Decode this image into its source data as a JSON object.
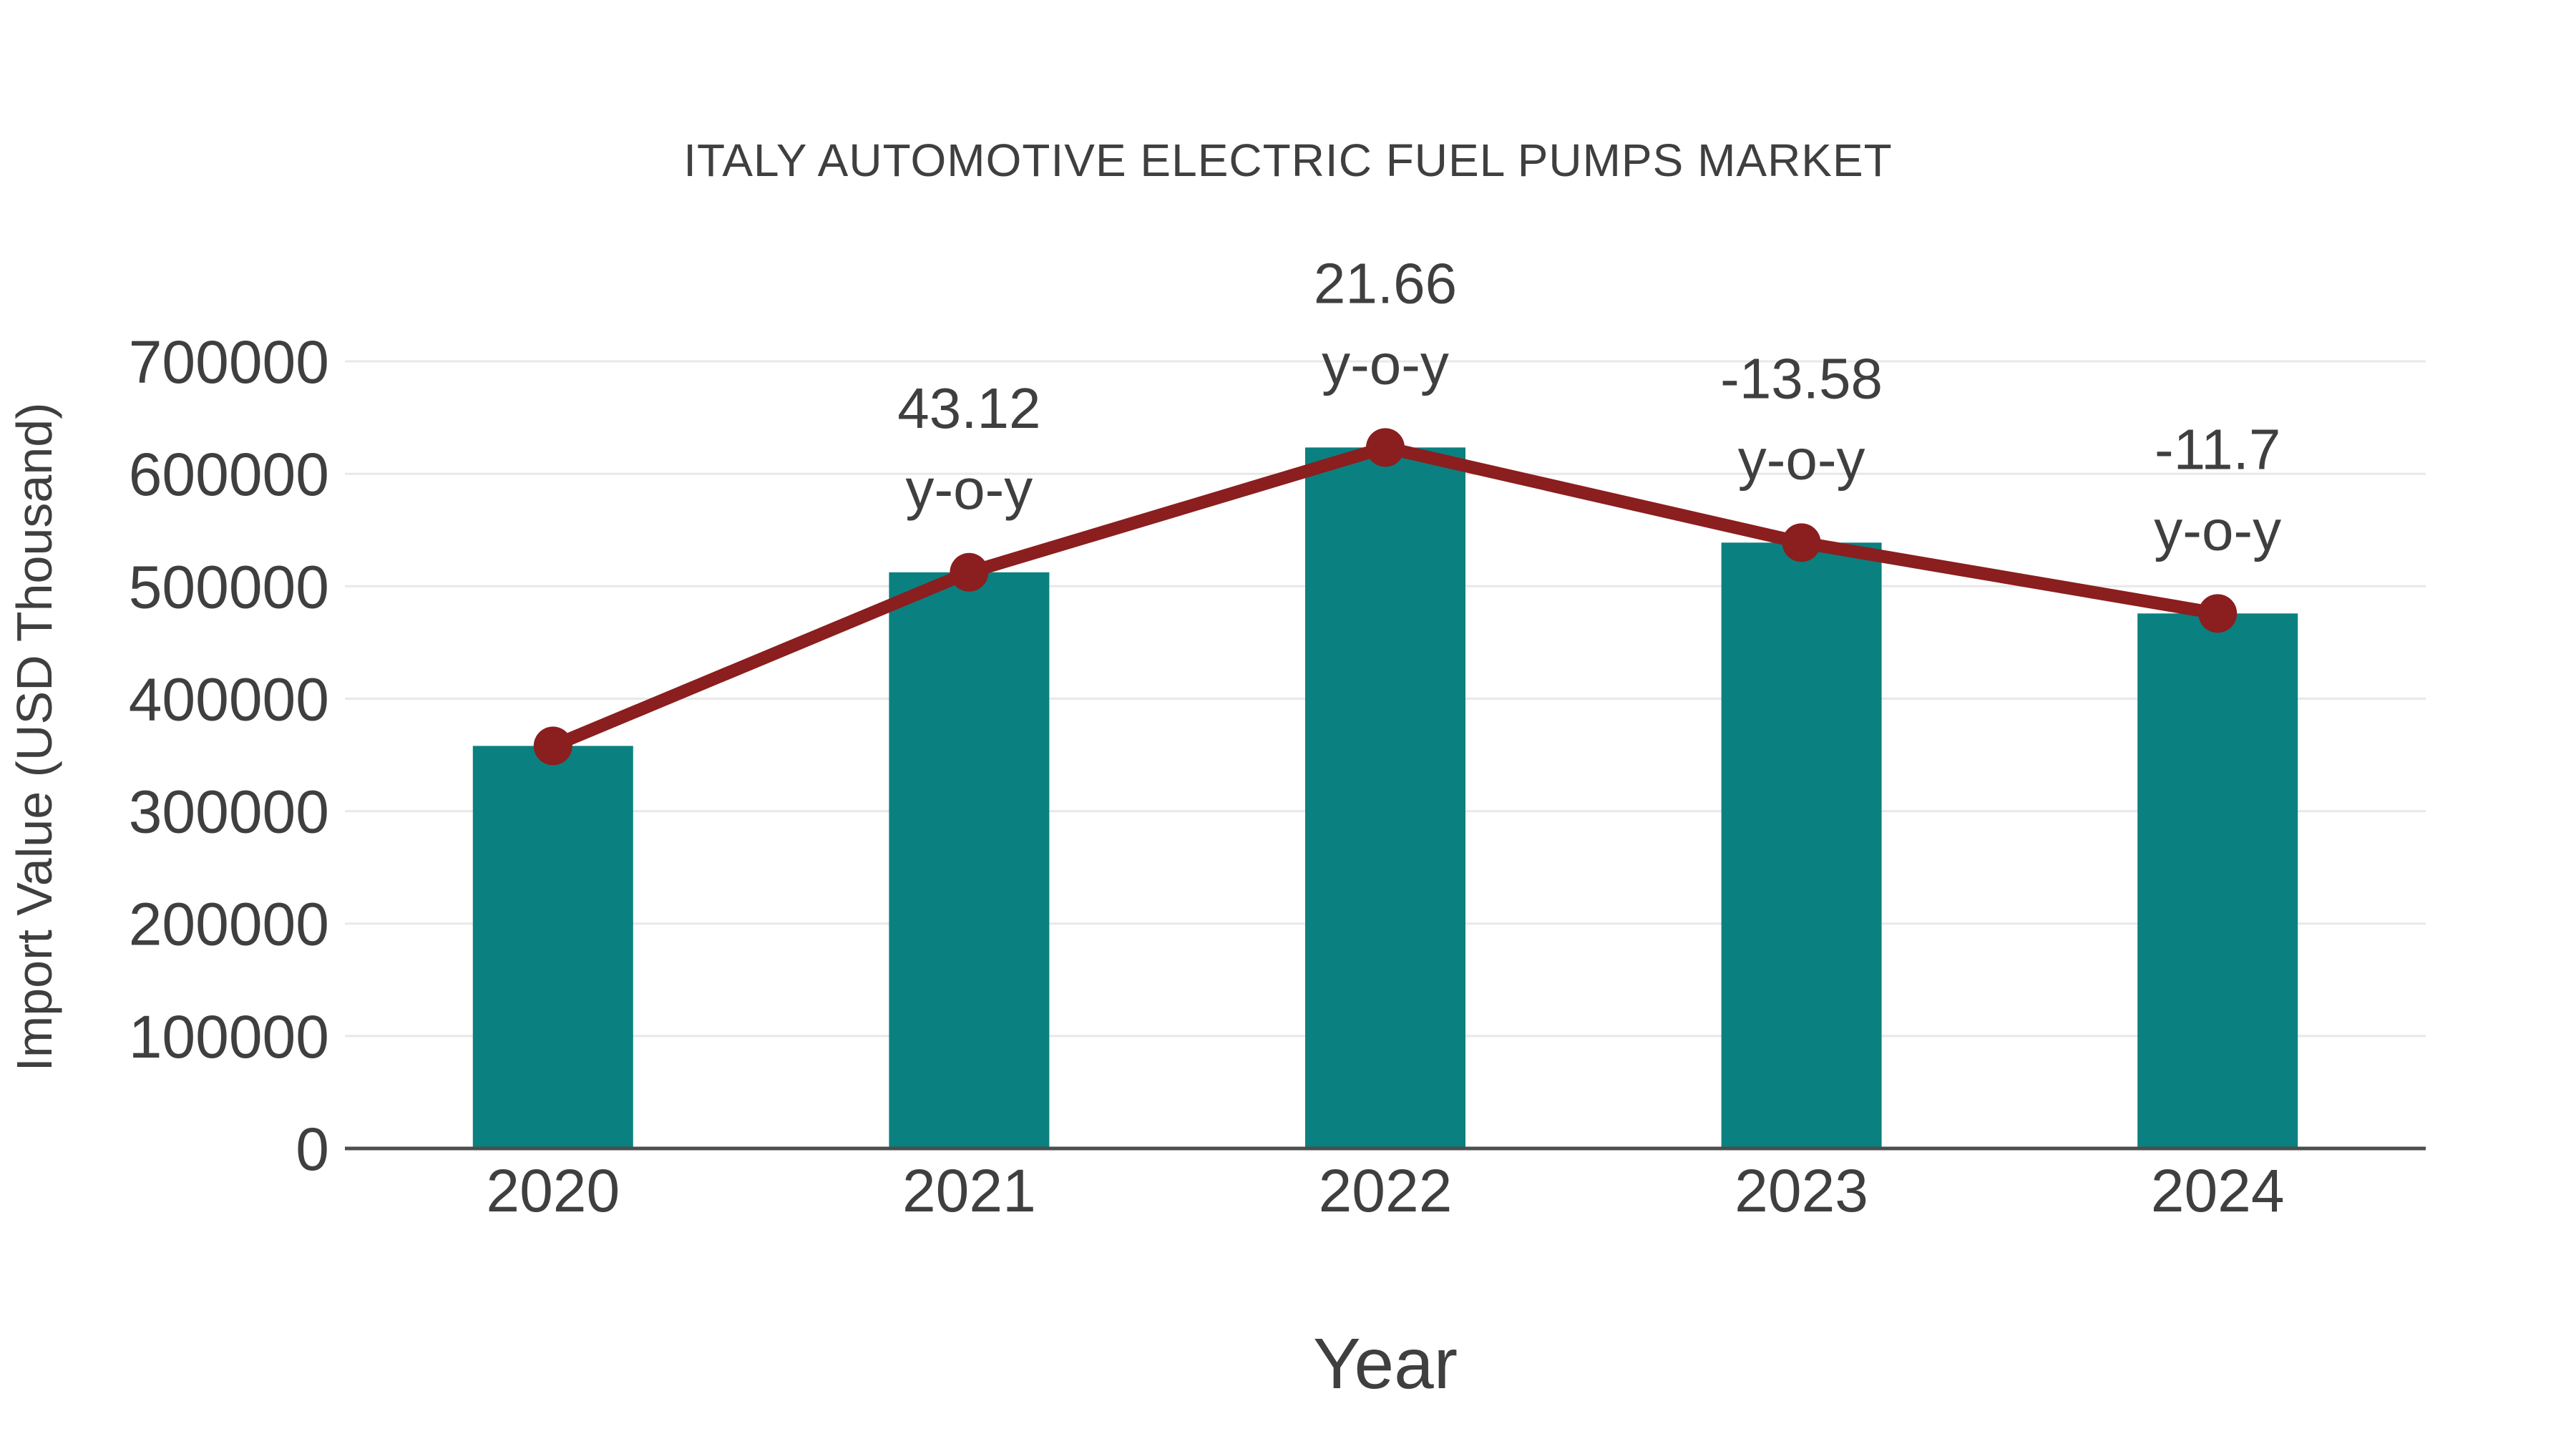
{
  "chart_data": {
    "type": "bar",
    "title": "ITALY AUTOMOTIVE ELECTRIC FUEL PUMPS MARKET",
    "xlabel": "Year",
    "ylabel": "Import Value (USD Thousand)",
    "categories": [
      "2020",
      "2021",
      "2022",
      "2023",
      "2024"
    ],
    "series": [
      {
        "name": "Import Value (USD Thousand)",
        "type": "bar",
        "values": [
          358000,
          512400,
          623400,
          538800,
          475800
        ]
      },
      {
        "name": "y-o-y change (%)",
        "type": "line",
        "values": [
          null,
          43.12,
          21.66,
          -13.58,
          -11.7
        ],
        "note": "line with round markers drawn through the tops of the bars"
      }
    ],
    "annotations": [
      {
        "category": "2021",
        "text": "43.12",
        "subtext": "y-o-y"
      },
      {
        "category": "2022",
        "text": "21.66",
        "subtext": "y-o-y"
      },
      {
        "category": "2023",
        "text": "-13.58",
        "subtext": "y-o-y"
      },
      {
        "category": "2024",
        "text": "-11.7",
        "subtext": "y-o-y"
      }
    ],
    "y_ticks": [
      "0",
      "100000",
      "200000",
      "300000",
      "400000",
      "500000",
      "600000",
      "700000"
    ],
    "ylim": [
      0,
      700000
    ],
    "grid": true,
    "legend_position": "none",
    "colors": {
      "bar": "#0b8080",
      "line": "#8b1e1e",
      "text": "#3f3f3f",
      "grid": "#e8e8e8",
      "axis": "#4d4d4d",
      "background": "#ffffff"
    }
  }
}
